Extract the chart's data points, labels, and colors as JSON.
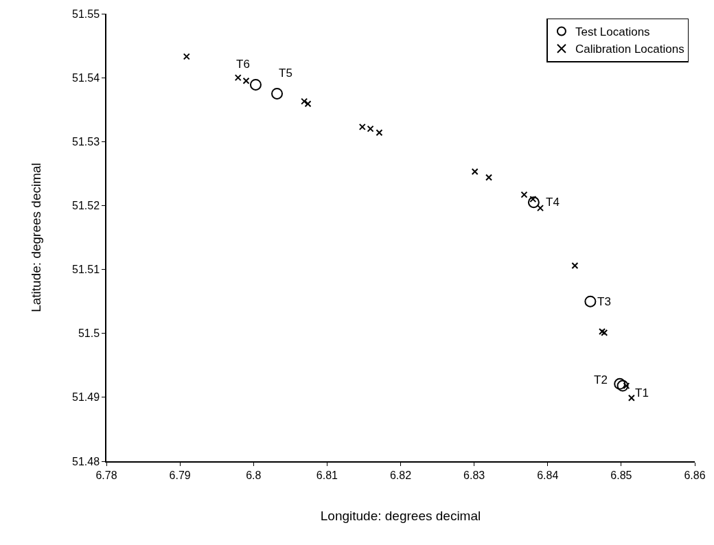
{
  "chart_data": {
    "type": "scatter",
    "xlabel": "Longitude: degrees decimal",
    "ylabel": "Latitude: degrees decimal",
    "xlim": [
      6.78,
      6.86
    ],
    "xticks": [
      6.78,
      6.79,
      {
        "value": 6.8,
        "label": "6.8"
      },
      6.81,
      6.82,
      6.83,
      6.84,
      6.85,
      6.86
    ],
    "ylim": [
      51.48,
      51.55
    ],
    "yticks": [
      51.48,
      51.49,
      {
        "value": 51.5,
        "label": "51.5"
      },
      51.51,
      51.52,
      51.53,
      51.54,
      51.55
    ],
    "grid": false,
    "legend": "top right",
    "series": [
      {
        "name": "Test Locations",
        "color": "#000000",
        "marker": "circle",
        "x": [
          6.8502,
          6.8498,
          6.8458,
          6.8381,
          6.8032,
          6.8003
        ],
        "values": [
          51.4918,
          51.4921,
          51.505,
          51.5205,
          51.5375,
          51.5389
        ]
      },
      {
        "name": "Calibration Locations",
        "color": "#000000",
        "marker": "cross",
        "x": [
          6.7909,
          6.7979,
          6.799,
          6.8069,
          6.8074,
          6.8148,
          6.8159,
          6.8171,
          6.8301,
          6.832,
          6.8368,
          6.838,
          6.839,
          6.8437,
          6.8474,
          6.8477,
          6.8507,
          6.8514
        ],
        "values": [
          51.5433,
          51.54,
          51.5395,
          51.5363,
          51.5359,
          51.5323,
          51.532,
          51.5314,
          51.5253,
          51.5244,
          51.5217,
          51.521,
          51.5196,
          51.5106,
          51.5003,
          51.5001,
          51.4918,
          51.4899
        ]
      }
    ],
    "annotations": [
      {
        "text": "T1",
        "x": 6.8502,
        "y": 51.4918
      },
      {
        "text": "T2",
        "x": 6.8498,
        "y": 51.4921
      },
      {
        "text": "T3",
        "x": 6.8458,
        "y": 51.505
      },
      {
        "text": "T4",
        "x": 6.8381,
        "y": 51.5205
      },
      {
        "text": "T5",
        "x": 6.8032,
        "y": 51.5375
      },
      {
        "text": "T6",
        "x": 6.8003,
        "y": 51.5389
      }
    ]
  }
}
